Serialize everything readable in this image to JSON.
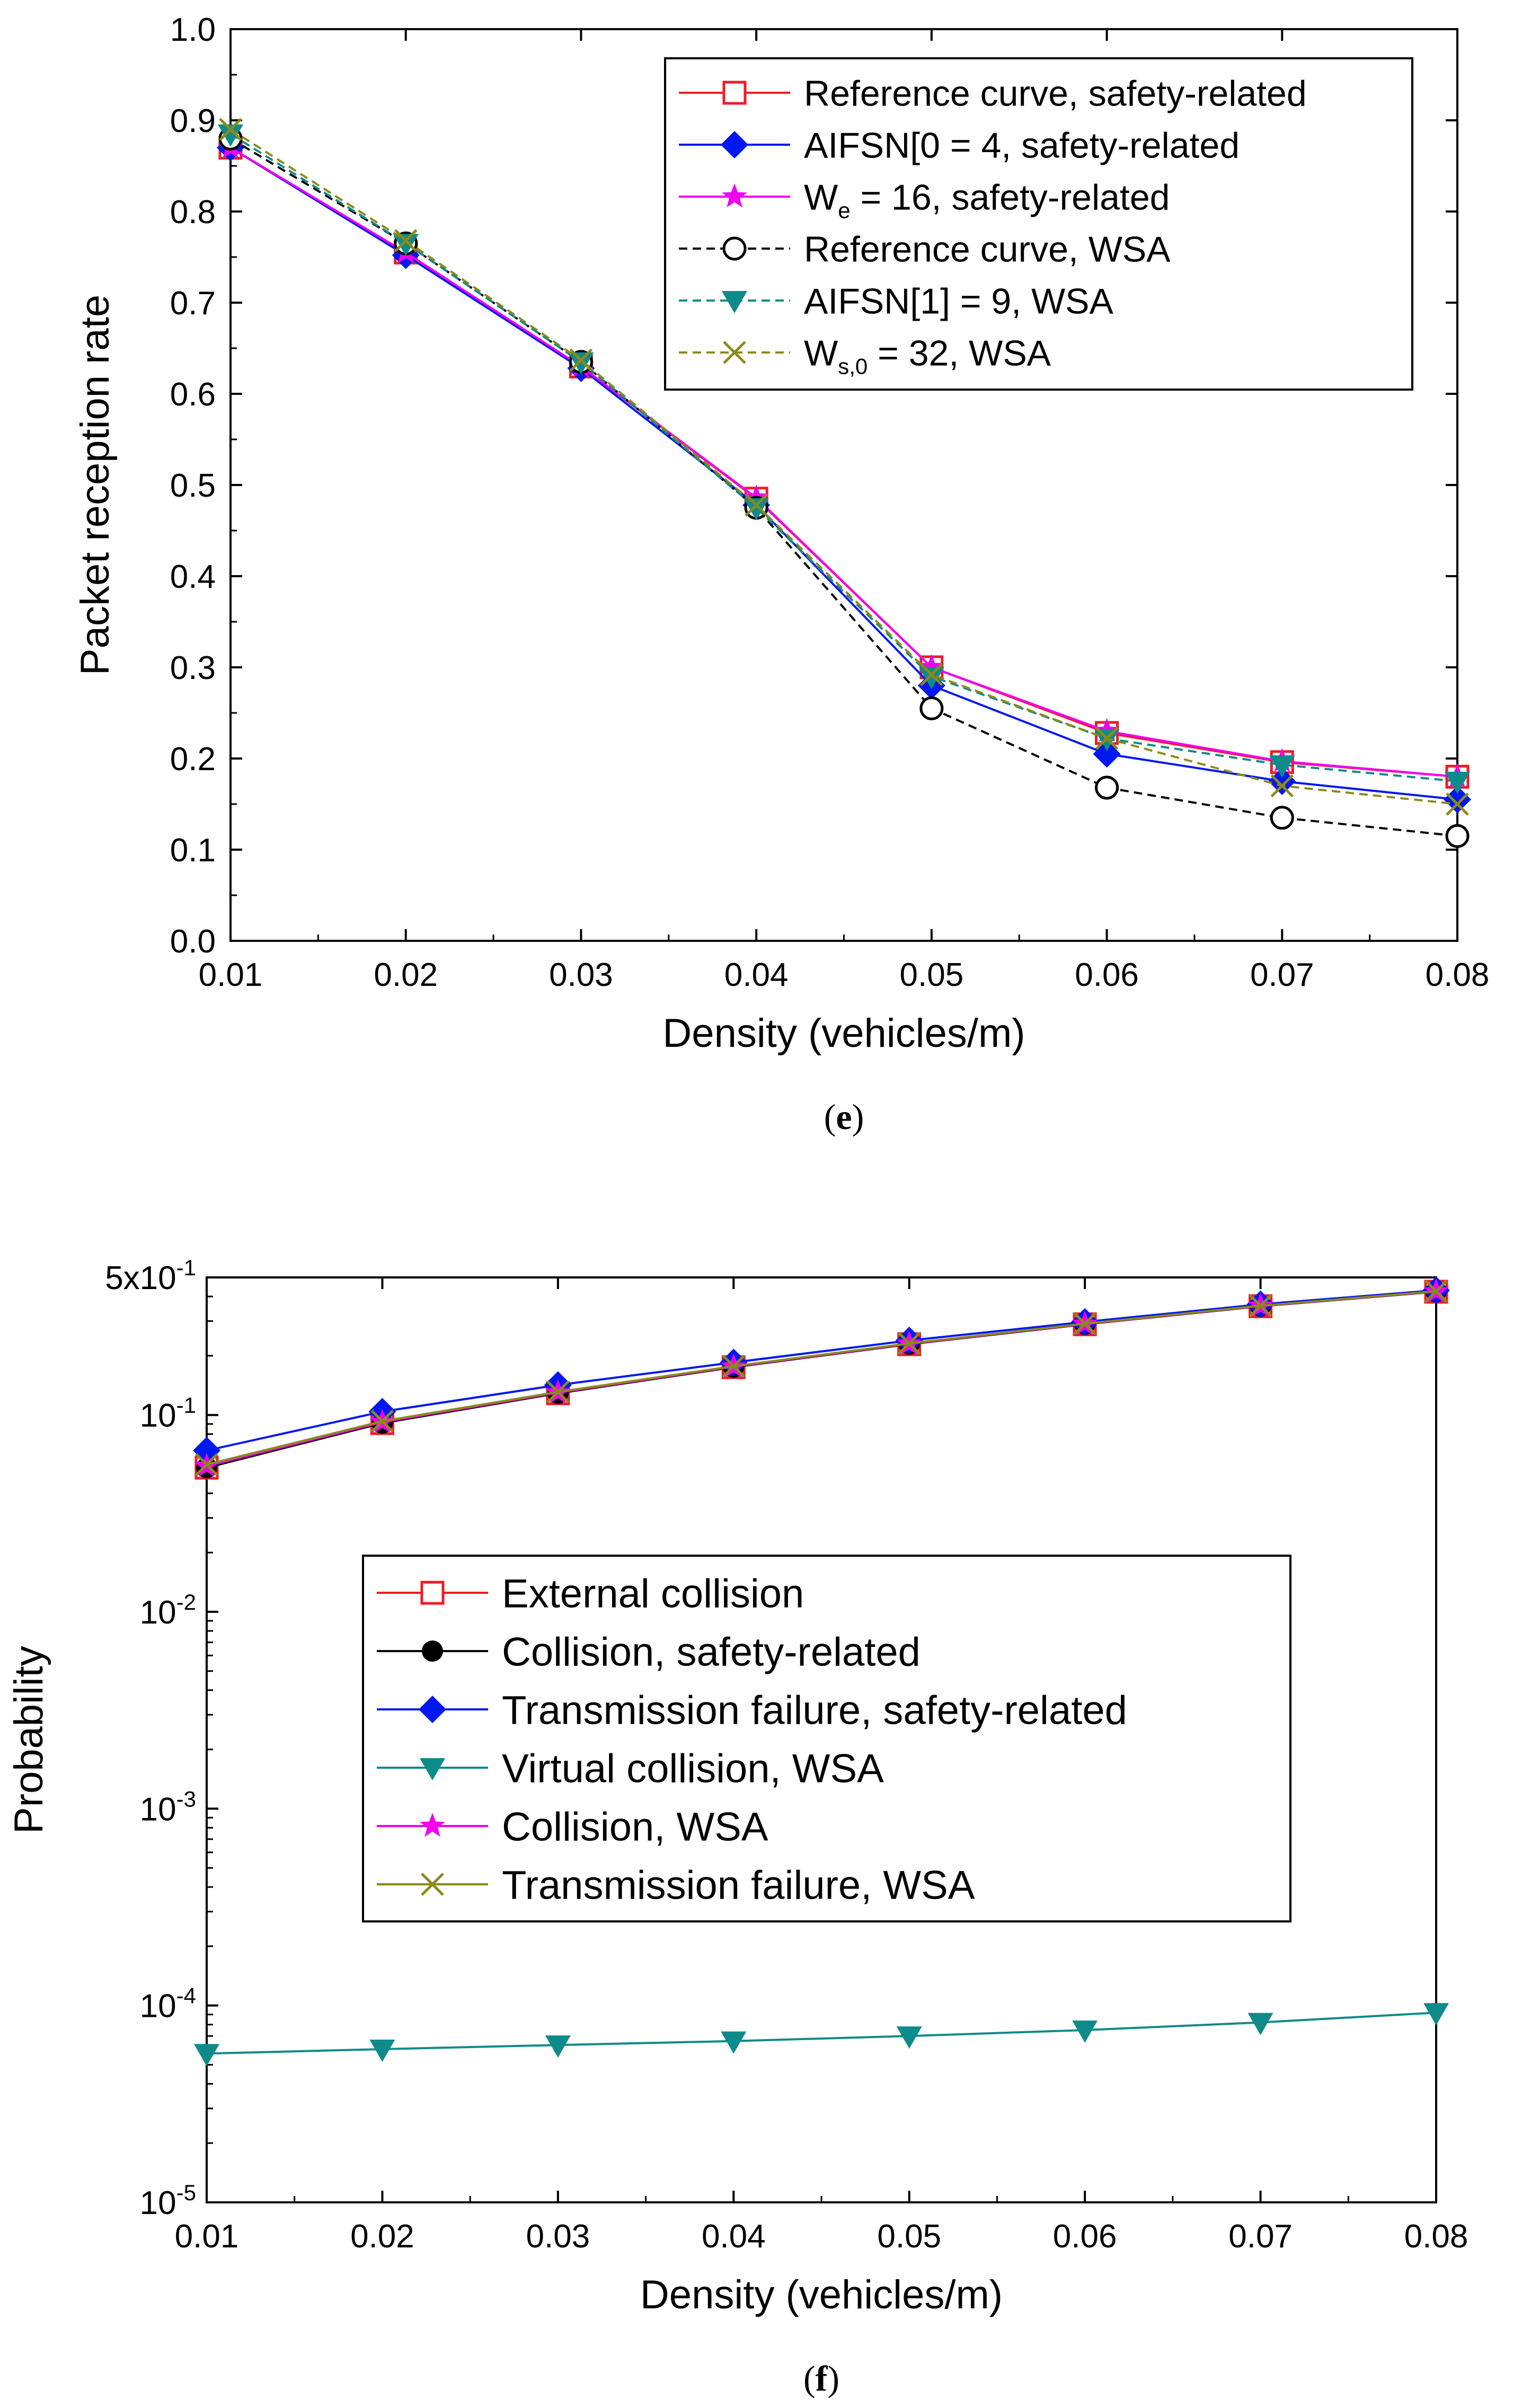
{
  "colors": {
    "red": "#ee1c24",
    "black": "#000000",
    "blue": "#0018f0",
    "magenta": "#f000f0",
    "teal": "#0f8a8a",
    "olive": "#8a8a1a"
  },
  "chart_data": [
    {
      "type": "line",
      "panel_label": "(e)",
      "caption_open": "(",
      "caption_letter": "e",
      "caption_close": ")",
      "title": "",
      "xlabel": "Density (vehicles/m)",
      "ylabel": "Packet reception rate",
      "xlim": [
        0.01,
        0.08
      ],
      "ylim": [
        0.0,
        1.0
      ],
      "yscale": "linear",
      "grid": false,
      "legend_position": "top-right",
      "x": [
        0.01,
        0.02,
        0.03,
        0.04,
        0.05,
        0.06,
        0.07,
        0.08
      ],
      "xticks": [
        "0.01",
        "0.02",
        "0.03",
        "0.04",
        "0.05",
        "0.06",
        "0.07",
        "0.08"
      ],
      "yticks": [
        "0.0",
        "0.1",
        "0.2",
        "0.3",
        "0.4",
        "0.5",
        "0.6",
        "0.7",
        "0.8",
        "0.9",
        "1.0"
      ],
      "series": [
        {
          "name": "Reference curve, safety-related",
          "label_main": "Reference curve, safety-related",
          "color_key": "red",
          "marker": "square-open",
          "dashed": false,
          "values": [
            0.87,
            0.755,
            0.63,
            0.485,
            0.3,
            0.228,
            0.196,
            0.18
          ]
        },
        {
          "name": "AIFSN[0 = 4, safety-related",
          "label_main": "AIFSN[0 = 4, safety-related",
          "color_key": "blue",
          "marker": "diamond",
          "dashed": false,
          "values": [
            0.87,
            0.752,
            0.628,
            0.478,
            0.28,
            0.205,
            0.175,
            0.155
          ]
        },
        {
          "name": "We = 16, safety-related",
          "label_main": "W",
          "label_sub": "e",
          "label_rest": " = 16, safety-related",
          "color_key": "magenta",
          "marker": "star",
          "dashed": false,
          "values": [
            0.87,
            0.755,
            0.63,
            0.486,
            0.3,
            0.23,
            0.197,
            0.18
          ]
        },
        {
          "name": "Reference curve, WSA",
          "label_main": "Reference curve, WSA",
          "color_key": "black",
          "marker": "circle-open",
          "dashed": true,
          "values": [
            0.88,
            0.765,
            0.635,
            0.475,
            0.255,
            0.168,
            0.135,
            0.115
          ]
        },
        {
          "name": "AIFSN[1] = 9, WSA",
          "label_main": "AIFSN[1] = 9, WSA",
          "color_key": "teal",
          "marker": "triangle-down",
          "dashed": true,
          "values": [
            0.885,
            0.765,
            0.635,
            0.475,
            0.29,
            0.222,
            0.193,
            0.175
          ]
        },
        {
          "name": "Ws,0 = 32, WSA",
          "label_main": "W",
          "label_sub": "s,0",
          "label_rest": " = 32, WSA",
          "color_key": "olive",
          "marker": "x",
          "dashed": true,
          "values": [
            0.89,
            0.768,
            0.637,
            0.478,
            0.292,
            0.222,
            0.17,
            0.15
          ]
        }
      ]
    },
    {
      "type": "line",
      "panel_label": "(f)",
      "caption_open": "(",
      "caption_letter": "f",
      "caption_close": ")",
      "title": "",
      "xlabel": "Density (vehicles/m)",
      "ylabel": "Probability",
      "xlim": [
        0.01,
        0.08
      ],
      "ylim": [
        1e-05,
        0.5
      ],
      "yscale": "log",
      "grid": false,
      "legend_position": "center",
      "x": [
        0.01,
        0.02,
        0.03,
        0.04,
        0.05,
        0.06,
        0.07,
        0.08
      ],
      "xticks": [
        "0.01",
        "0.02",
        "0.03",
        "0.04",
        "0.05",
        "0.06",
        "0.07",
        "0.08"
      ],
      "yticks": [
        {
          "value": 1e-05,
          "base": "10",
          "exp": "-5"
        },
        {
          "value": 0.0001,
          "base": "10",
          "exp": "-4"
        },
        {
          "value": 0.001,
          "base": "10",
          "exp": "-3"
        },
        {
          "value": 0.01,
          "base": "10",
          "exp": "-2"
        },
        {
          "value": 0.1,
          "base": "10",
          "exp": "-1"
        },
        {
          "value": 0.5,
          "base": "5x10",
          "exp": "-1"
        }
      ],
      "series": [
        {
          "name": "External collision",
          "label_main": "External collision",
          "color_key": "red",
          "marker": "square-open",
          "dashed": false,
          "values": [
            0.054,
            0.091,
            0.129,
            0.175,
            0.229,
            0.289,
            0.357,
            0.423
          ]
        },
        {
          "name": "Collision, safety-related",
          "label_main": "Collision, safety-related",
          "color_key": "black",
          "marker": "circle",
          "dashed": false,
          "values": [
            0.054,
            0.091,
            0.129,
            0.175,
            0.229,
            0.289,
            0.357,
            0.423
          ]
        },
        {
          "name": "Transmission failure, safety-related",
          "label_main": "Transmission failure, safety-related",
          "color_key": "blue",
          "marker": "diamond",
          "dashed": false,
          "values": [
            0.066,
            0.104,
            0.142,
            0.185,
            0.239,
            0.297,
            0.365,
            0.43
          ]
        },
        {
          "name": "Virtual collision, WSA",
          "label_main": "Virtual collision, WSA",
          "color_key": "teal",
          "marker": "triangle-down",
          "dashed": false,
          "values": [
            5.7e-05,
            6e-05,
            6.3e-05,
            6.6e-05,
            7e-05,
            7.5e-05,
            8.2e-05,
            9.2e-05
          ]
        },
        {
          "name": "Collision, WSA",
          "label_main": "Collision, WSA",
          "color_key": "magenta",
          "marker": "star",
          "dashed": false,
          "values": [
            0.055,
            0.092,
            0.13,
            0.176,
            0.23,
            0.29,
            0.358,
            0.424
          ]
        },
        {
          "name": "Transmission failure, WSA",
          "label_main": "Transmission failure, WSA",
          "color_key": "olive",
          "marker": "x",
          "dashed": false,
          "values": [
            0.056,
            0.093,
            0.131,
            0.177,
            0.231,
            0.291,
            0.359,
            0.425
          ]
        }
      ]
    }
  ]
}
